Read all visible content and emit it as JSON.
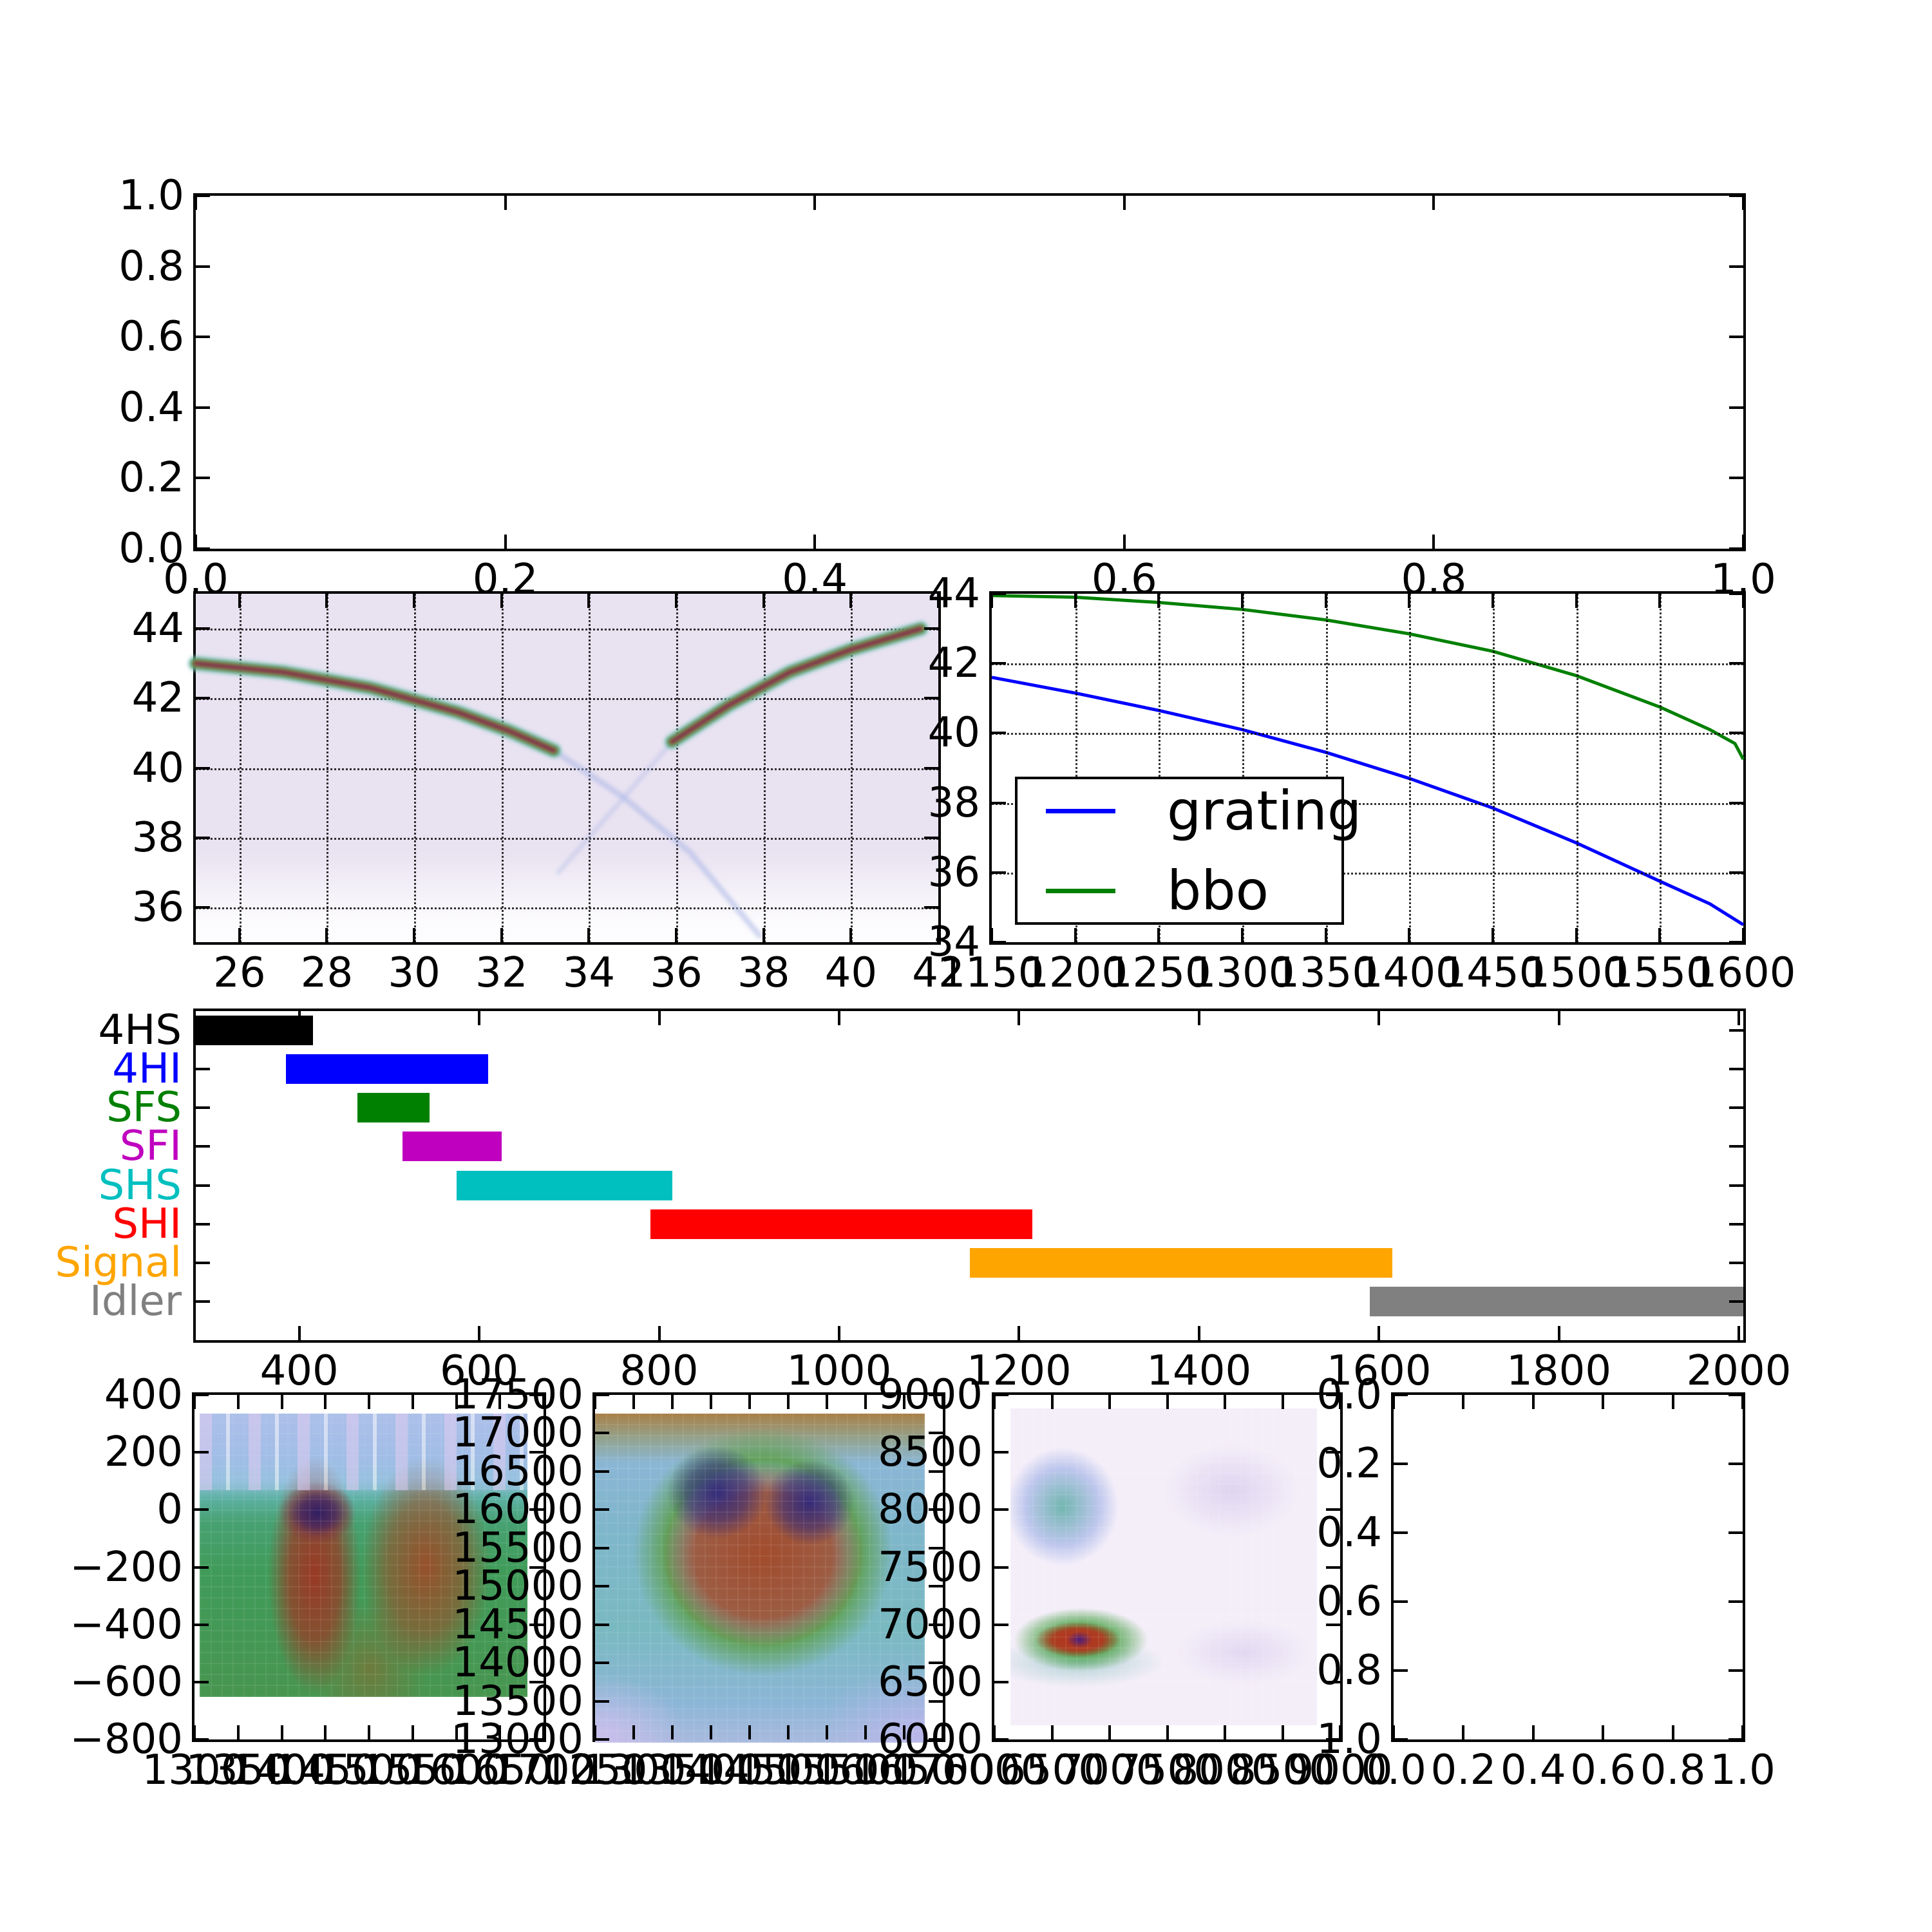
{
  "figure": {
    "background": "#ffffff",
    "description": "Matplotlib-style multi-panel simulation figure"
  },
  "axes": {
    "top_empty": {
      "x_ticks": {
        "values": [
          0,
          0.2,
          0.4,
          0.6,
          0.8,
          1
        ],
        "labels": [
          "0.0",
          "0.2",
          "0.4",
          "0.6",
          "0.8",
          "1.0"
        ]
      },
      "y_ticks": {
        "values": [
          0,
          0.2,
          0.4,
          0.6,
          0.8,
          1
        ],
        "labels": [
          "0.0",
          "0.2",
          "0.4",
          "0.6",
          "0.8",
          "1.0"
        ]
      }
    },
    "phase_matching": {
      "x_ticks": {
        "values": [
          26,
          28,
          30,
          32,
          34,
          36,
          38,
          40,
          42
        ],
        "labels": [
          "26",
          "28",
          "30",
          "32",
          "34",
          "36",
          "38",
          "40",
          "42"
        ]
      },
      "y_ticks": {
        "values": [
          36,
          38,
          40,
          42,
          44
        ],
        "labels": [
          "36",
          "38",
          "40",
          "42",
          "44"
        ]
      }
    },
    "tuning": {
      "x_ticks": {
        "values": [
          1150,
          1200,
          1250,
          1300,
          1350,
          1400,
          1450,
          1500,
          1550,
          1600
        ],
        "labels": [
          "1150",
          "1200",
          "1250",
          "1300",
          "1350",
          "1400",
          "1450",
          "1500",
          "1550",
          "1600"
        ]
      },
      "y_ticks": {
        "values": [
          34,
          36,
          38,
          40,
          42,
          44
        ],
        "labels": [
          "34",
          "36",
          "38",
          "40",
          "42",
          "44"
        ]
      },
      "legend": [
        {
          "label": "grating",
          "color": "#0000ff"
        },
        {
          "label": "bbo",
          "color": "#008000"
        }
      ]
    },
    "bands": {
      "x_ticks": {
        "values": [
          400,
          600,
          800,
          1000,
          1200,
          1400,
          1600,
          1800,
          2000
        ],
        "labels": [
          "400",
          "600",
          "800",
          "1000",
          "1200",
          "1400",
          "1600",
          "1800",
          "2000"
        ]
      }
    },
    "b1": {
      "x_ticks": {
        "values": [
          1300,
          1350,
          1400,
          1450,
          1500,
          1550,
          1600,
          1650,
          1700
        ],
        "labels": [
          "1300",
          "1350",
          "1400",
          "1450",
          "1500",
          "1550",
          "1600",
          "1650",
          "1700"
        ]
      },
      "y_ticks": {
        "values": [
          400,
          200,
          0,
          -200,
          -400,
          -600,
          -800
        ],
        "labels": [
          "400",
          "200",
          "0",
          "−200",
          "−400",
          "−600",
          "−800"
        ]
      }
    },
    "b2": {
      "x_ticks": {
        "values": [
          1250,
          1300,
          1350,
          1400,
          1450,
          1500,
          1550,
          1600,
          1650,
          1700
        ],
        "labels": [
          "1250",
          "1300",
          "1350",
          "1400",
          "1450",
          "1500",
          "1550",
          "1600",
          "1650",
          "1700"
        ]
      },
      "y_ticks": {
        "values": [
          17500,
          17000,
          16500,
          16000,
          15500,
          15000,
          14500,
          14000,
          13500,
          13000
        ],
        "labels": [
          "17500",
          "17000",
          "16500",
          "16000",
          "15500",
          "15000",
          "14500",
          "14000",
          "13500",
          "13000"
        ]
      }
    },
    "b3": {
      "x_ticks": {
        "values": [
          6000,
          6500,
          7000,
          7500,
          8000,
          8500,
          9000
        ],
        "labels": [
          "6000",
          "6500",
          "7000",
          "7500",
          "8000",
          "8500",
          "9000"
        ]
      },
      "y_ticks": {
        "values": [
          9000,
          8500,
          8000,
          7500,
          7000,
          6500,
          6000
        ],
        "labels": [
          "9000",
          "8500",
          "8000",
          "7500",
          "7000",
          "6500",
          "6000"
        ]
      }
    },
    "b4": {
      "x_ticks": {
        "values": [
          0,
          0.2,
          0.4,
          0.6,
          0.8,
          1
        ],
        "labels": [
          "0.0",
          "0.2",
          "0.4",
          "0.6",
          "0.8",
          "1.0"
        ]
      },
      "y_ticks": {
        "values": [
          0,
          0.2,
          0.4,
          0.6,
          0.8,
          1
        ],
        "labels": [
          "1.0",
          "0.8",
          "0.6",
          "0.4",
          "0.2",
          "0.0"
        ]
      }
    }
  },
  "chart_data": [
    {
      "id": "top_empty",
      "type": "line",
      "xlim": [
        0,
        1
      ],
      "ylim": [
        0,
        1
      ],
      "series": [],
      "note": "empty axes, no data plotted"
    },
    {
      "id": "phase_matching",
      "type": "heatmap",
      "xlim": [
        25,
        42
      ],
      "ylim": [
        35,
        45
      ],
      "grid": "dotted",
      "description": "Phase-matching intensity map on pale lavender background: two bright curved branches crossing near (34.8, 39.2). Left branch descends from (25,43) to (33,40.5) then fades; right branch rises from (36,40.8) to (41.6,44). Faint light-blue extensions form an X through the crossing; background bleaches to white below y≈36.",
      "branches_strong": [
        [
          [
            25,
            43.0
          ],
          [
            27,
            42.75
          ],
          [
            29,
            42.3
          ],
          [
            31,
            41.6
          ],
          [
            32.2,
            41.05
          ],
          [
            33.2,
            40.5
          ]
        ],
        [
          [
            35.9,
            40.75
          ],
          [
            37.2,
            41.8
          ],
          [
            38.6,
            42.75
          ],
          [
            40.0,
            43.4
          ],
          [
            41.6,
            44.0
          ]
        ]
      ],
      "branches_faint": [
        [
          [
            33.2,
            40.5
          ],
          [
            34.8,
            39.15
          ],
          [
            36.3,
            37.6
          ],
          [
            37.9,
            35.2
          ]
        ],
        [
          [
            33.3,
            37.0
          ],
          [
            34.2,
            38.3
          ],
          [
            34.8,
            39.15
          ],
          [
            35.9,
            40.75
          ]
        ]
      ],
      "colormap_hint": {
        "background": "#e9e2f1",
        "band_outer": "#2f9e54",
        "band_core": "#a8341f",
        "band_center": "#5f2a6e",
        "faint": "#a9b6e6"
      }
    },
    {
      "id": "tuning",
      "type": "line",
      "xlim": [
        1150,
        1600
      ],
      "ylim": [
        34,
        44
      ],
      "grid": "dotted",
      "legend_position": "lower left",
      "series": [
        {
          "name": "grating",
          "color": "#0000ff",
          "x": [
            1150,
            1200,
            1250,
            1300,
            1350,
            1400,
            1450,
            1500,
            1550,
            1580,
            1600
          ],
          "y": [
            41.6,
            41.15,
            40.65,
            40.1,
            39.45,
            38.7,
            37.85,
            36.85,
            35.75,
            35.1,
            34.5
          ]
        },
        {
          "name": "bbo",
          "color": "#008000",
          "x": [
            1150,
            1200,
            1250,
            1300,
            1350,
            1400,
            1450,
            1500,
            1550,
            1580,
            1595,
            1600
          ],
          "y": [
            43.95,
            43.9,
            43.75,
            43.55,
            43.25,
            42.85,
            42.35,
            41.65,
            40.75,
            40.1,
            39.7,
            39.25
          ]
        }
      ]
    },
    {
      "id": "bands",
      "type": "bar",
      "orientation": "horizontal",
      "xlim": [
        285,
        2005
      ],
      "ylim": [
        0,
        8.5
      ],
      "categories": [
        "4HS",
        "4HI",
        "SFS",
        "SFI",
        "SHS",
        "SHI",
        "Signal",
        "Idler"
      ],
      "colors": [
        "#000000",
        "#0000ff",
        "#008000",
        "#bf00bf",
        "#00bfbf",
        "#ff0000",
        "#ffa500",
        "#808080"
      ],
      "ranges": [
        [
          285,
          415
        ],
        [
          385,
          610
        ],
        [
          465,
          545
        ],
        [
          515,
          625
        ],
        [
          575,
          815
        ],
        [
          790,
          1215
        ],
        [
          1145,
          1615
        ],
        [
          1590,
          2005
        ]
      ],
      "y_positions": [
        8,
        7,
        6,
        5,
        4,
        3,
        2,
        1
      ]
    },
    {
      "id": "b1",
      "type": "heatmap",
      "xlim": [
        1300,
        1700
      ],
      "ylim": [
        -800,
        400
      ],
      "description": "Pixelated map: noisy blue/lavender band above y≈100; teal-to-green field below; two red-brown vertical lobes near x≈1450 and x≈1580 spanning y≈0 to −650; dark purple maximum near (1450,−60); white margin below y≈−650."
    },
    {
      "id": "b2",
      "type": "heatmap",
      "xlim": [
        1250,
        1700
      ],
      "ylim": [
        13000,
        17500
      ],
      "description": "Smooth map: cyan-blue background; broad red-brown region spanning x≈1380–1640, y≈14000–16800; two dark purple maxima near (1430,16000) and (1560,16000); green halo; orange-brown band along top edge; lavender lower corners."
    },
    {
      "id": "b3",
      "type": "heatmap",
      "xlim": [
        6000,
        9000
      ],
      "ylim": [
        6000,
        9000
      ],
      "description": "Mostly pale lavender; diffuse teal-blue blob near (6700,8100); intense elongated spot near (6700,6700) with green rim, red body and small dark purple core; very faint purple patches near (8200,8200) and (8300,6600)."
    },
    {
      "id": "b4",
      "type": "line",
      "xlim": [
        0,
        1
      ],
      "ylim": [
        0,
        1
      ],
      "series": [],
      "note": "empty axes, no data plotted"
    }
  ]
}
